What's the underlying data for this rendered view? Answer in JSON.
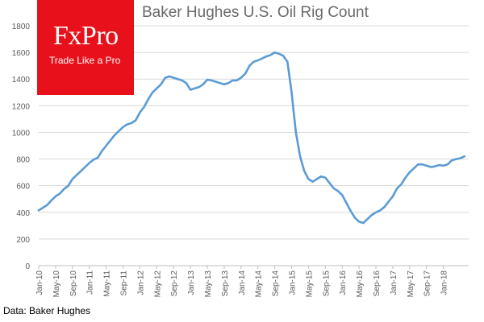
{
  "logo": {
    "mark": "FxPro",
    "tagline": "Trade Like a Pro",
    "color": "#e8111b"
  },
  "source_note": "Data: Baker Hughes",
  "chart_data": {
    "type": "line",
    "title": "Baker Hughes U.S. Oil Rig Count",
    "xlabel": "",
    "ylabel": "",
    "x_start": "Jan-10",
    "x_end": "Jul-18",
    "ylim": [
      0,
      1800
    ],
    "y_ticks": [
      0,
      200,
      400,
      600,
      800,
      1000,
      1200,
      1400,
      1600,
      1800
    ],
    "x_ticks": [
      "Jan-10",
      "May-10",
      "Sep-10",
      "Jan-11",
      "May-11",
      "Sep-11",
      "Jan-12",
      "May-12",
      "Sep-12",
      "Jan-13",
      "May-13",
      "Sep-13",
      "Jan-14",
      "May-14",
      "Sep-14",
      "Jan-15",
      "May-15",
      "Sep-15",
      "Jan-16",
      "May-16",
      "Sep-16",
      "Jan-17",
      "May-17",
      "Sep-17",
      "Jan-18"
    ],
    "grid": "horizontal",
    "line_color": "#5b9bd5",
    "series": [
      {
        "name": "",
        "points": [
          [
            "Jan-10",
            415
          ],
          [
            "Feb-10",
            435
          ],
          [
            "Mar-10",
            455
          ],
          [
            "Apr-10",
            490
          ],
          [
            "May-10",
            520
          ],
          [
            "Jun-10",
            540
          ],
          [
            "Jul-10",
            575
          ],
          [
            "Aug-10",
            600
          ],
          [
            "Sep-10",
            650
          ],
          [
            "Oct-10",
            680
          ],
          [
            "Nov-10",
            710
          ],
          [
            "Dec-10",
            740
          ],
          [
            "Jan-11",
            770
          ],
          [
            "Feb-11",
            795
          ],
          [
            "Mar-11",
            810
          ],
          [
            "Apr-11",
            860
          ],
          [
            "May-11",
            900
          ],
          [
            "Jun-11",
            940
          ],
          [
            "Jul-11",
            980
          ],
          [
            "Aug-11",
            1010
          ],
          [
            "Sep-11",
            1040
          ],
          [
            "Oct-11",
            1060
          ],
          [
            "Nov-11",
            1070
          ],
          [
            "Dec-11",
            1090
          ],
          [
            "Jan-12",
            1150
          ],
          [
            "Feb-12",
            1190
          ],
          [
            "Mar-12",
            1250
          ],
          [
            "Apr-12",
            1300
          ],
          [
            "May-12",
            1330
          ],
          [
            "Jun-12",
            1360
          ],
          [
            "Jul-12",
            1410
          ],
          [
            "Aug-12",
            1420
          ],
          [
            "Sep-12",
            1410
          ],
          [
            "Oct-12",
            1400
          ],
          [
            "Nov-12",
            1390
          ],
          [
            "Dec-12",
            1370
          ],
          [
            "Jan-13",
            1320
          ],
          [
            "Feb-13",
            1330
          ],
          [
            "Mar-13",
            1340
          ],
          [
            "Apr-13",
            1360
          ],
          [
            "May-13",
            1395
          ],
          [
            "Jun-13",
            1390
          ],
          [
            "Jul-13",
            1380
          ],
          [
            "Aug-13",
            1370
          ],
          [
            "Sep-13",
            1360
          ],
          [
            "Oct-13",
            1370
          ],
          [
            "Nov-13",
            1390
          ],
          [
            "Dec-13",
            1390
          ],
          [
            "Jan-14",
            1410
          ],
          [
            "Feb-14",
            1440
          ],
          [
            "Mar-14",
            1500
          ],
          [
            "Apr-14",
            1530
          ],
          [
            "May-14",
            1540
          ],
          [
            "Jun-14",
            1555
          ],
          [
            "Jul-14",
            1570
          ],
          [
            "Aug-14",
            1580
          ],
          [
            "Sep-14",
            1600
          ],
          [
            "Oct-14",
            1590
          ],
          [
            "Nov-14",
            1575
          ],
          [
            "Dec-14",
            1530
          ],
          [
            "Jan-15",
            1300
          ],
          [
            "Feb-15",
            1000
          ],
          [
            "Mar-15",
            820
          ],
          [
            "Apr-15",
            710
          ],
          [
            "May-15",
            650
          ],
          [
            "Jun-15",
            630
          ],
          [
            "Jul-15",
            650
          ],
          [
            "Aug-15",
            670
          ],
          [
            "Sep-15",
            660
          ],
          [
            "Oct-15",
            620
          ],
          [
            "Nov-15",
            580
          ],
          [
            "Dec-15",
            560
          ],
          [
            "Jan-16",
            530
          ],
          [
            "Feb-16",
            470
          ],
          [
            "Mar-16",
            410
          ],
          [
            "Apr-16",
            360
          ],
          [
            "May-16",
            330
          ],
          [
            "Jun-16",
            320
          ],
          [
            "Jul-16",
            350
          ],
          [
            "Aug-16",
            380
          ],
          [
            "Sep-16",
            400
          ],
          [
            "Oct-16",
            415
          ],
          [
            "Nov-16",
            440
          ],
          [
            "Dec-16",
            480
          ],
          [
            "Jan-17",
            520
          ],
          [
            "Feb-17",
            580
          ],
          [
            "Mar-17",
            610
          ],
          [
            "Apr-17",
            660
          ],
          [
            "May-17",
            700
          ],
          [
            "Jun-17",
            730
          ],
          [
            "Jul-17",
            760
          ],
          [
            "Aug-17",
            760
          ],
          [
            "Sep-17",
            750
          ],
          [
            "Oct-17",
            740
          ],
          [
            "Nov-17",
            745
          ],
          [
            "Dec-17",
            755
          ],
          [
            "Jan-18",
            750
          ],
          [
            "Feb-18",
            760
          ],
          [
            "Mar-18",
            790
          ],
          [
            "Apr-18",
            800
          ],
          [
            "May-18",
            805
          ],
          [
            "Jun-18",
            820
          ]
        ]
      }
    ]
  }
}
